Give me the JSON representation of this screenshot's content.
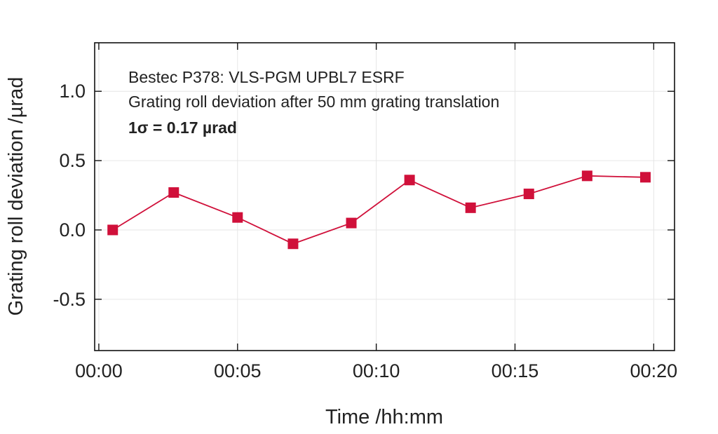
{
  "chart_data": {
    "type": "line",
    "annotations": [
      "Bestec P378: VLS-PGM UPBL7 ESRF",
      "Grating roll deviation after 50 mm grating translation",
      "1σ = 0.17 µrad"
    ],
    "xlabel": "Time /hh:mm",
    "ylabel": "Grating roll deviation /µrad",
    "xlim_minutes": [
      -0.15,
      20.75
    ],
    "ylim": [
      -0.87,
      1.35
    ],
    "x_ticks": [
      {
        "value": 0,
        "label": "00:00"
      },
      {
        "value": 5,
        "label": "00:05"
      },
      {
        "value": 10,
        "label": "00:10"
      },
      {
        "value": 15,
        "label": "00:15"
      },
      {
        "value": 20,
        "label": "00:20"
      }
    ],
    "y_ticks": [
      {
        "value": 1.0,
        "label": "1.0"
      },
      {
        "value": 0.5,
        "label": "0.5"
      },
      {
        "value": 0.0,
        "label": "0.0"
      },
      {
        "value": -0.5,
        "label": "-0.5"
      }
    ],
    "grid": true,
    "series": [
      {
        "color": "#d0103a",
        "marker": "square",
        "x_minutes": [
          0.5,
          2.7,
          5.0,
          7.0,
          9.1,
          11.2,
          13.4,
          15.5,
          17.6,
          19.7
        ],
        "y": [
          0.0,
          0.27,
          0.09,
          -0.1,
          0.05,
          0.36,
          0.16,
          0.26,
          0.39,
          0.38
        ]
      }
    ]
  }
}
